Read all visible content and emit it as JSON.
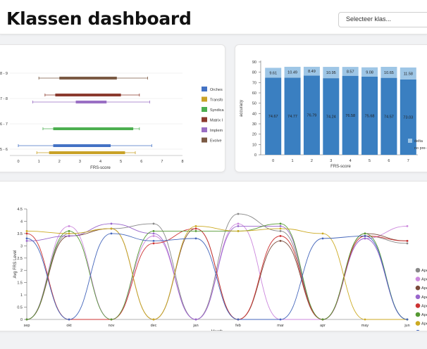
{
  "header": {
    "title": "Klassen dashboard",
    "class_select_placeholder": "Selecteer klas..."
  },
  "colors": {
    "background": "#f1f2f4",
    "card": "#ffffff",
    "bar_dark": "#3a7fc1",
    "bar_light": "#9ec6e6"
  },
  "chart_data": [
    {
      "type": "boxplot",
      "xlabel": "FRS-score",
      "xlim": [
        0,
        8
      ],
      "x_ticks": [
        0,
        1,
        2,
        3,
        4,
        5,
        6,
        7,
        8
      ],
      "y_ticks": [
        "8 - 9",
        "7 - 8",
        "6 - 7",
        "5 - 6"
      ],
      "grid": true,
      "legend_position": "right",
      "legend": [
        {
          "label": "Orches",
          "color": "#4472c4"
        },
        {
          "label": "Transfo",
          "color": "#c9a227"
        },
        {
          "label": "Syndica",
          "color": "#4caf50"
        },
        {
          "label": "Matrix I",
          "color": "#8b3a2e"
        },
        {
          "label": "Implem",
          "color": "#9a6fc4"
        },
        {
          "label": "Evolve",
          "color": "#7b5a44"
        }
      ],
      "boxes": [
        {
          "band": "8 - 9",
          "series": "Evolve",
          "color": "#7b5a44",
          "whisker": [
            1.0,
            6.3
          ],
          "box": [
            2.0,
            4.8
          ]
        },
        {
          "band": "7 - 8",
          "series": "Matrix I",
          "color": "#8b3a2e",
          "whisker": [
            1.3,
            5.9
          ],
          "box": [
            1.8,
            5.0
          ]
        },
        {
          "band": "7 - 8",
          "series": "Implem",
          "color": "#9a6fc4",
          "whisker": [
            0.7,
            6.4
          ],
          "box": [
            2.8,
            4.3
          ]
        },
        {
          "band": "6 - 7",
          "series": "Syndica",
          "color": "#4caf50",
          "whisker": [
            1.2,
            5.9
          ],
          "box": [
            1.7,
            5.6
          ]
        },
        {
          "band": "5 - 6",
          "series": "Orches",
          "color": "#4472c4",
          "whisker": [
            0.0,
            6.5
          ],
          "box": [
            1.7,
            4.5
          ]
        },
        {
          "band": "5 - 6",
          "series": "Transfo",
          "color": "#c9a227",
          "whisker": [
            0.9,
            5.7
          ],
          "box": [
            1.5,
            5.2
          ]
        }
      ]
    },
    {
      "type": "bar",
      "stacked": true,
      "xlabel": "FRS-score",
      "ylabel": "accuracy",
      "ylim": [
        0,
        90
      ],
      "y_ticks": [
        0,
        10,
        20,
        30,
        40,
        50,
        60,
        70,
        80,
        90
      ],
      "categories": [
        "0",
        "1",
        "2",
        "3",
        "4",
        "5",
        "6",
        "7"
      ],
      "legend_position": "bottom-right",
      "series": [
        {
          "name": "",
          "color": "#3a7fc1",
          "values": [
            74.67,
            74.77,
            76.79,
            74.24,
            76.58,
            75.68,
            74.57,
            73.03
          ]
        },
        {
          "name": "delta",
          "color": "#9ec6e6",
          "values": [
            9.61,
            10.49,
            8.49,
            10.95,
            8.57,
            9.08,
            10.65,
            11.58
          ]
        }
      ],
      "legend": [
        {
          "label": "delta",
          "color": "#9ec6e6"
        },
        {
          "label": "no pre-",
          "color": "#3a7fc1"
        }
      ]
    },
    {
      "type": "line",
      "xlabel": "Month",
      "ylabel": "Avg FRS Level",
      "x": [
        "sep",
        "okt",
        "nov",
        "dec",
        "jan",
        "feb",
        "mar",
        "apr",
        "may",
        "jun"
      ],
      "ylim": [
        0,
        4.5
      ],
      "y_ticks": [
        0,
        0.5,
        1,
        1.5,
        2,
        2.5,
        3,
        3.5,
        4,
        4.5
      ],
      "legend_position": "right",
      "series": [
        {
          "name": "Ape",
          "color": "#888888",
          "values": [
            0,
            3.5,
            3.7,
            3.9,
            0,
            4.3,
            3.6,
            0,
            3.4,
            3.1
          ]
        },
        {
          "name": "Ape",
          "color": "#cc88dd",
          "values": [
            0,
            3.8,
            0,
            3.4,
            0,
            3.9,
            0,
            0,
            3.3,
            3.8
          ]
        },
        {
          "name": "Ape",
          "color": "#7a4a3a",
          "values": [
            0,
            3.4,
            3.7,
            0,
            3.7,
            0,
            3.2,
            0,
            3.5,
            3.2
          ]
        },
        {
          "name": "Ape",
          "color": "#9966cc",
          "values": [
            3.2,
            3.4,
            3.9,
            3.5,
            0,
            3.8,
            3.8,
            0,
            3.3,
            0
          ]
        },
        {
          "name": "Ape",
          "color": "#cc3333",
          "values": [
            3.5,
            0,
            0,
            3.1,
            3.7,
            0,
            3.4,
            0,
            3.4,
            3.2
          ]
        },
        {
          "name": "Ape",
          "color": "#559933",
          "values": [
            0,
            3.6,
            0,
            3.6,
            3.6,
            3.6,
            3.9,
            0,
            3.5,
            0
          ]
        },
        {
          "name": "Ape",
          "color": "#ccaa22",
          "values": [
            3.6,
            3.5,
            3.7,
            0,
            3.8,
            3.6,
            3.7,
            3.5,
            0,
            0
          ]
        },
        {
          "name": "Ape",
          "color": "#4466bb",
          "values": [
            3.3,
            0,
            3.5,
            3.2,
            3.3,
            0,
            0,
            3.3,
            3.4,
            0
          ]
        }
      ]
    }
  ]
}
